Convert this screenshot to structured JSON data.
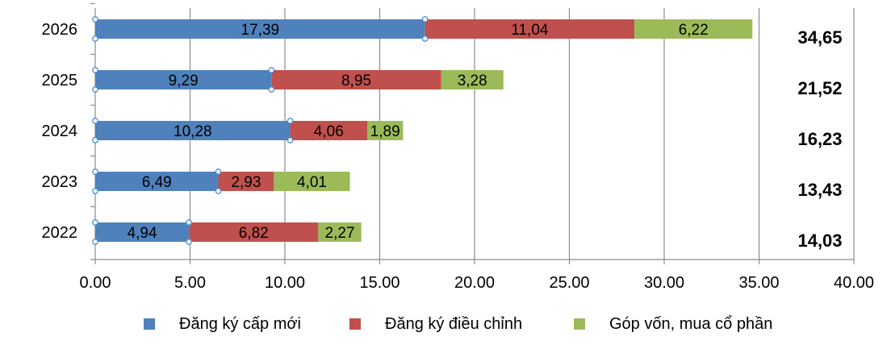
{
  "chart_data": {
    "type": "bar",
    "orientation": "horizontal",
    "stacked": true,
    "categories": [
      "2026",
      "2025",
      "2024",
      "2023",
      "2022"
    ],
    "series": [
      {
        "name": "Đăng ký cấp mới",
        "color": "#4f81bd",
        "values": [
          17.39,
          9.29,
          10.28,
          6.49,
          4.94
        ],
        "labels": [
          "17,39",
          "9,29",
          "10,28",
          "6,49",
          "4,94"
        ]
      },
      {
        "name": "Đăng ký điều chỉnh",
        "color": "#c0504d",
        "values": [
          11.04,
          8.95,
          4.06,
          2.93,
          6.82
        ],
        "labels": [
          "11,04",
          "8,95",
          "4,06",
          "2,93",
          "6,82"
        ]
      },
      {
        "name": "Góp vốn, mua cổ phần",
        "color": "#9bbb59",
        "values": [
          6.22,
          3.28,
          1.89,
          4.01,
          2.27
        ],
        "labels": [
          "6,22",
          "3,28",
          "1,89",
          "4,01",
          "2,27"
        ]
      }
    ],
    "totals": [
      "34,65",
      "21,52",
      "16,23",
      "13,43",
      "14,03"
    ],
    "xlim": [
      0,
      40
    ],
    "x_ticks": [
      "0.00",
      "5.00",
      "10.00",
      "15.00",
      "20.00",
      "25.00",
      "30.00",
      "35.00",
      "40.00"
    ],
    "grid": "vertical",
    "legend_position": "bottom"
  }
}
